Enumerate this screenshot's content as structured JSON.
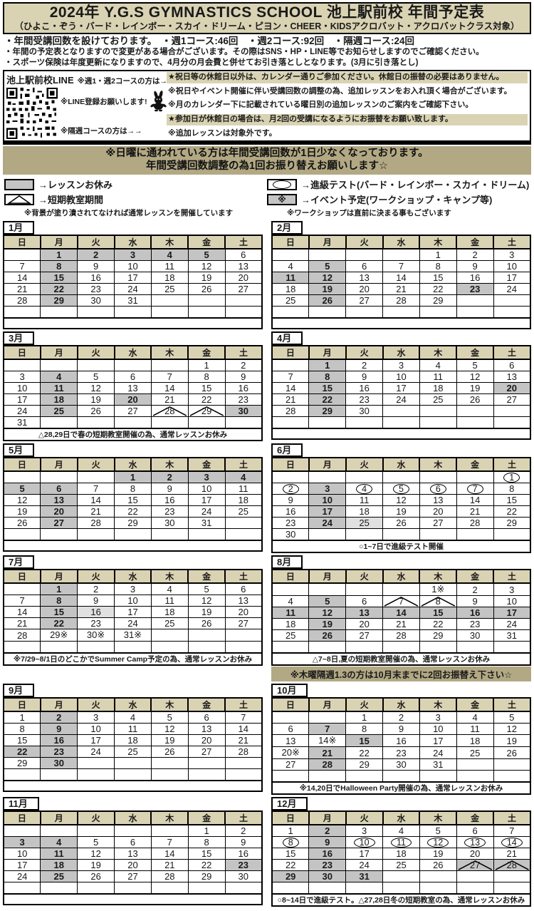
{
  "title": "2024年  Y.G.S GYMNASTICS SCHOOL  池上駅前校  年間予定表",
  "subtitle": "（ひよこ・ぞう・バード・レインボー・スカイ・ドリーム・ピヨン・CHEER・KIDSアクロバット・アクロバットクラス対象）",
  "notes": [
    "・年間受講回数を設けております。　・週1コース:46回　・週2コース:92回　・隔週コース:24回",
    "・年間の予定表となりますので変更がある場合がございます。その際はSNS・HP・LINE等でお知らせしますのでご確認ください。",
    "・スポーツ保険は年度更新になりますので、4月分の月会費と併せてお引き落としとなります。(3月に引き落とし)"
  ],
  "line_box": {
    "line_label": "池上駅前校LINE",
    "week_course_label": "※週1・週2コースの方は→→",
    "register_label": "※LINE登録お願いします!",
    "biweekly_label": "※隔週コースの方は→→",
    "qr_icon": "line-qr-code",
    "mascot_icon": "rabbit-mascot-icon",
    "right_lines": [
      "★祝日等の休館日以外は、カレンダー通りご参加ください。休館日の振替の必要はありません。",
      "※祝日やイベント開催に伴い受講回数の調整の為、追加レッスンをお入れ頂く場合がございます。",
      "※月のカレンダー下に記載されている曜日別の追加レッスンのご案内をご確認下さい。",
      "★参加日が休館日の場合は、月2回の受講になるようにお振替をお願い致します。",
      "※追加レッスンは対象外です。"
    ]
  },
  "sunday_banner": [
    "※日曜に通われている方は年間受講回数が1日少なくなっております。",
    "年間受講回数調整の為1回お振り替えお願いします☆"
  ],
  "legend": {
    "gray_label": "→レッスンお休み",
    "triangle_label": "→短期教室期間",
    "left_note": "※背景が塗り潰されてなければ通常レッスンを開催しています",
    "oval_label": "→進級テスト(バード・レインボー・スカイ・ドリーム)",
    "asterisk_label": "→イベント予定(ワークショップ・キャンプ等)",
    "asterisk_glyph": "※",
    "right_note": "※ワークショップは直前に決まる事もございます"
  },
  "colors": {
    "closed_gray": "#c4c4c4",
    "light_gray": "#e0e0e0",
    "khaki_banner": "#b2a984",
    "beige_header": "#d9d3b3"
  },
  "weekdays": [
    "日",
    "月",
    "火",
    "水",
    "木",
    "金",
    "土"
  ],
  "mark_legend": {
    "g": "lesson-closed",
    "gl": "lesson-closed-light",
    "c": "promotion-test",
    "t": "short-term-class",
    "tg": "short-term-class-closed",
    "a": "event-closed"
  },
  "months": [
    {
      "label": "1月",
      "footer": "",
      "weeks": [
        [
          "",
          {
            "d": 1,
            "m": "g"
          },
          {
            "d": 2,
            "m": "g"
          },
          {
            "d": 3,
            "m": "g"
          },
          {
            "d": 4,
            "m": "g"
          },
          {
            "d": 5,
            "m": "g"
          },
          6
        ],
        [
          7,
          {
            "d": 8,
            "m": "g"
          },
          9,
          10,
          11,
          12,
          13
        ],
        [
          14,
          {
            "d": 15,
            "m": "g"
          },
          16,
          17,
          18,
          19,
          20
        ],
        [
          21,
          {
            "d": 22,
            "m": "g"
          },
          23,
          24,
          25,
          26,
          27
        ],
        [
          28,
          {
            "d": 29,
            "m": "g"
          },
          30,
          31,
          "",
          "",
          ""
        ],
        [
          "",
          "",
          "",
          "",
          "",
          "",
          ""
        ]
      ]
    },
    {
      "label": "2月",
      "footer": "",
      "weeks": [
        [
          "",
          "",
          "",
          "",
          1,
          2,
          3
        ],
        [
          4,
          {
            "d": 5,
            "m": "g"
          },
          6,
          7,
          8,
          9,
          10
        ],
        [
          {
            "d": 11,
            "m": "g"
          },
          {
            "d": 12,
            "m": "g"
          },
          13,
          14,
          15,
          16,
          17
        ],
        [
          18,
          {
            "d": 19,
            "m": "g"
          },
          20,
          21,
          22,
          {
            "d": 23,
            "m": "g"
          },
          24
        ],
        [
          25,
          {
            "d": 26,
            "m": "g"
          },
          27,
          28,
          29,
          "",
          ""
        ],
        [
          "",
          "",
          "",
          "",
          "",
          "",
          ""
        ]
      ]
    },
    {
      "label": "3月",
      "footer": "△28,29日で春の短期教室開催の為、通常レッスンお休み",
      "weeks": [
        [
          "",
          "",
          "",
          "",
          "",
          1,
          2
        ],
        [
          3,
          {
            "d": 4,
            "m": "g"
          },
          5,
          6,
          7,
          8,
          9
        ],
        [
          10,
          {
            "d": 11,
            "m": "g"
          },
          12,
          13,
          14,
          15,
          16
        ],
        [
          17,
          {
            "d": 18,
            "m": "g"
          },
          19,
          {
            "d": 20,
            "m": "g"
          },
          21,
          22,
          23
        ],
        [
          24,
          {
            "d": 25,
            "m": "g"
          },
          26,
          27,
          {
            "d": 28,
            "m": "t"
          },
          {
            "d": 29,
            "m": "t"
          },
          {
            "d": 30,
            "m": "g"
          }
        ],
        [
          31,
          "",
          "",
          "",
          "",
          "",
          ""
        ]
      ]
    },
    {
      "label": "4月",
      "footer": "",
      "weeks": [
        [
          "",
          {
            "d": 1,
            "m": "g"
          },
          2,
          3,
          4,
          5,
          6
        ],
        [
          7,
          {
            "d": 8,
            "m": "g"
          },
          9,
          10,
          11,
          12,
          13
        ],
        [
          14,
          {
            "d": 15,
            "m": "g"
          },
          16,
          17,
          18,
          19,
          {
            "d": 20,
            "m": "g"
          }
        ],
        [
          21,
          {
            "d": 22,
            "m": "g"
          },
          23,
          24,
          25,
          26,
          27
        ],
        [
          28,
          {
            "d": 29,
            "m": "g"
          },
          30,
          "",
          "",
          "",
          ""
        ],
        [
          "",
          "",
          "",
          "",
          "",
          "",
          ""
        ]
      ]
    },
    {
      "label": "5月",
      "footer": "",
      "weeks": [
        [
          "",
          "",
          "",
          {
            "d": 1,
            "m": "g"
          },
          {
            "d": 2,
            "m": "g"
          },
          {
            "d": 3,
            "m": "g"
          },
          {
            "d": 4,
            "m": "g"
          }
        ],
        [
          {
            "d": 5,
            "m": "g"
          },
          {
            "d": 6,
            "m": "g"
          },
          7,
          8,
          9,
          10,
          11
        ],
        [
          12,
          {
            "d": 13,
            "m": "g"
          },
          14,
          15,
          16,
          17,
          18
        ],
        [
          19,
          {
            "d": 20,
            "m": "g"
          },
          21,
          22,
          23,
          24,
          25
        ],
        [
          26,
          {
            "d": 27,
            "m": "g"
          },
          28,
          29,
          30,
          31,
          ""
        ],
        [
          "",
          "",
          "",
          "",
          "",
          "",
          ""
        ]
      ]
    },
    {
      "label": "6月",
      "footer": "○1~7日で進級テスト開催",
      "weeks": [
        [
          "",
          "",
          "",
          "",
          "",
          "",
          {
            "d": 1,
            "m": "c"
          }
        ],
        [
          {
            "d": 2,
            "m": "c"
          },
          {
            "d": 3,
            "m": "g"
          },
          {
            "d": 4,
            "m": "c"
          },
          {
            "d": 5,
            "m": "c"
          },
          {
            "d": 6,
            "m": "c"
          },
          {
            "d": 7,
            "m": "c"
          },
          8
        ],
        [
          9,
          {
            "d": 10,
            "m": "g"
          },
          11,
          12,
          13,
          14,
          15
        ],
        [
          16,
          {
            "d": 17,
            "m": "g"
          },
          18,
          19,
          20,
          21,
          22
        ],
        [
          23,
          {
            "d": 24,
            "m": "g"
          },
          {
            "d": 25,
            "m": "gl"
          },
          26,
          27,
          28,
          29
        ],
        [
          30,
          "",
          "",
          "",
          "",
          "",
          ""
        ]
      ]
    },
    {
      "label": "7月",
      "footer": "※7/29~8/1日のどこかでSummer Camp予定の為、通常レッスンお休み",
      "weeks": [
        [
          "",
          {
            "d": 1,
            "m": "g"
          },
          2,
          3,
          4,
          5,
          6
        ],
        [
          7,
          {
            "d": 8,
            "m": "g"
          },
          9,
          10,
          11,
          12,
          13
        ],
        [
          14,
          {
            "d": 15,
            "m": "g"
          },
          {
            "d": 16,
            "m": "gl"
          },
          17,
          18,
          19,
          20
        ],
        [
          21,
          {
            "d": 22,
            "m": "g"
          },
          23,
          24,
          25,
          26,
          27
        ],
        [
          28,
          {
            "d": 29,
            "m": "a"
          },
          {
            "d": 30,
            "m": "a"
          },
          {
            "d": 31,
            "m": "a"
          },
          "",
          "",
          ""
        ],
        [
          "",
          "",
          "",
          "",
          "",
          "",
          ""
        ]
      ]
    },
    {
      "label": "8月",
      "footer": "△7~8日,夏の短期教室開催の為、通常レッスンお休み",
      "banner_below": "※木曜隔週1.3の方は10月末までに2回お振替え下さい☆",
      "weeks": [
        [
          "",
          "",
          "",
          "",
          {
            "d": 1,
            "m": "a"
          },
          2,
          3
        ],
        [
          4,
          {
            "d": 5,
            "m": "g"
          },
          6,
          {
            "d": 7,
            "m": "t"
          },
          {
            "d": 8,
            "m": "t"
          },
          9,
          10
        ],
        [
          {
            "d": 11,
            "m": "g"
          },
          {
            "d": 12,
            "m": "g"
          },
          {
            "d": 13,
            "m": "g"
          },
          {
            "d": 14,
            "m": "g"
          },
          {
            "d": 15,
            "m": "g"
          },
          {
            "d": 16,
            "m": "g"
          },
          {
            "d": 17,
            "m": "g"
          }
        ],
        [
          18,
          {
            "d": 19,
            "m": "g"
          },
          20,
          21,
          22,
          23,
          24
        ],
        [
          25,
          {
            "d": 26,
            "m": "g"
          },
          27,
          28,
          29,
          30,
          31
        ],
        [
          "",
          "",
          "",
          "",
          "",
          "",
          ""
        ]
      ]
    },
    {
      "label": "9月",
      "footer": "",
      "weeks": [
        [
          1,
          {
            "d": 2,
            "m": "g"
          },
          3,
          4,
          5,
          6,
          7
        ],
        [
          8,
          {
            "d": 9,
            "m": "g"
          },
          10,
          11,
          12,
          13,
          14
        ],
        [
          15,
          {
            "d": 16,
            "m": "g"
          },
          17,
          18,
          19,
          20,
          21
        ],
        [
          {
            "d": 22,
            "m": "g"
          },
          {
            "d": 23,
            "m": "g"
          },
          24,
          25,
          26,
          27,
          28
        ],
        [
          29,
          {
            "d": 30,
            "m": "g"
          },
          "",
          "",
          "",
          "",
          ""
        ],
        [
          "",
          "",
          "",
          "",
          "",
          "",
          ""
        ]
      ]
    },
    {
      "label": "10月",
      "footer": "※14,20日でHalloween Party開催の為、通常レッスンお休み",
      "weeks": [
        [
          "",
          "",
          1,
          2,
          3,
          4,
          5
        ],
        [
          6,
          {
            "d": 7,
            "m": "g"
          },
          8,
          9,
          10,
          11,
          12
        ],
        [
          13,
          {
            "d": 14,
            "m": "a"
          },
          {
            "d": 15,
            "m": "g"
          },
          16,
          17,
          18,
          19
        ],
        [
          {
            "d": 20,
            "m": "a"
          },
          {
            "d": 21,
            "m": "g"
          },
          22,
          23,
          24,
          25,
          26
        ],
        [
          27,
          {
            "d": 28,
            "m": "g"
          },
          29,
          30,
          31,
          "",
          ""
        ],
        [
          "",
          "",
          "",
          "",
          "",
          "",
          ""
        ]
      ]
    },
    {
      "label": "11月",
      "footer": "",
      "weeks": [
        [
          "",
          "",
          "",
          "",
          "",
          1,
          2
        ],
        [
          {
            "d": 3,
            "m": "g"
          },
          {
            "d": 4,
            "m": "g"
          },
          5,
          6,
          7,
          8,
          9
        ],
        [
          10,
          {
            "d": 11,
            "m": "g"
          },
          12,
          13,
          14,
          15,
          16
        ],
        [
          17,
          {
            "d": 18,
            "m": "g"
          },
          19,
          20,
          21,
          22,
          {
            "d": 23,
            "m": "g"
          }
        ],
        [
          24,
          {
            "d": 25,
            "m": "g"
          },
          26,
          27,
          28,
          29,
          30
        ],
        [
          "",
          "",
          "",
          "",
          "",
          "",
          ""
        ]
      ]
    },
    {
      "label": "12月",
      "footer": "○8~14日で進級テスト。△27,28日冬の短期教室の為、通常レッスンお休み",
      "weeks": [
        [
          1,
          {
            "d": 2,
            "m": "g"
          },
          3,
          4,
          5,
          6,
          7
        ],
        [
          {
            "d": 8,
            "m": "c"
          },
          {
            "d": 9,
            "m": "g"
          },
          {
            "d": 10,
            "m": "c"
          },
          {
            "d": 11,
            "m": "c"
          },
          {
            "d": 12,
            "m": "c"
          },
          {
            "d": 13,
            "m": "c"
          },
          {
            "d": 14,
            "m": "c"
          }
        ],
        [
          15,
          {
            "d": 16,
            "m": "g"
          },
          17,
          18,
          19,
          20,
          21
        ],
        [
          22,
          {
            "d": 23,
            "m": "g"
          },
          24,
          25,
          26,
          {
            "d": 27,
            "m": "tg"
          },
          {
            "d": 28,
            "m": "tg"
          }
        ],
        [
          {
            "d": 29,
            "m": "g"
          },
          {
            "d": 30,
            "m": "g"
          },
          {
            "d": 31,
            "m": "g"
          },
          "",
          "",
          "",
          ""
        ],
        [
          "",
          "",
          "",
          "",
          "",
          "",
          ""
        ]
      ]
    }
  ]
}
